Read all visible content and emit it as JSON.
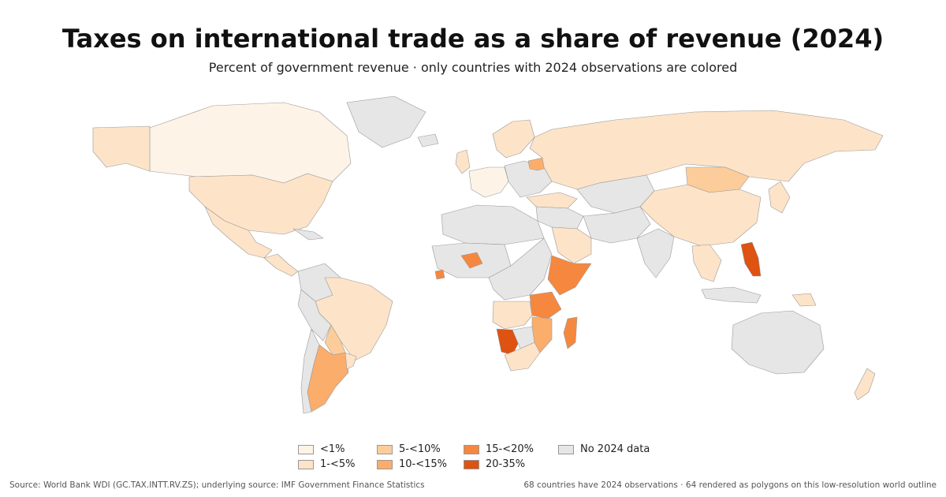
{
  "title": "Taxes on international trade as a share of revenue (2024)",
  "subtitle": "Percent of government revenue · only countries with 2024 observations are colored",
  "legend": {
    "items": [
      {
        "label": "<1%",
        "color": "#fef3e7"
      },
      {
        "label": "1-<5%",
        "color": "#fde3c8"
      },
      {
        "label": "5-<10%",
        "color": "#fccd9a"
      },
      {
        "label": "10-<15%",
        "color": "#fbad6b"
      },
      {
        "label": "15-<20%",
        "color": "#f5883e"
      },
      {
        "label": "20-35%",
        "color": "#de5212"
      },
      {
        "label": "No 2024 data",
        "color": "#e6e6e6"
      }
    ]
  },
  "footer": {
    "source": "Source: World Bank WDI (GC.TAX.INTT.RV.ZS); underlying source: IMF Government Finance Statistics",
    "note": "68 countries have 2024 observations · 64 rendered as polygons on this low-resolution world outline"
  },
  "map": {
    "regions": [
      {
        "name": "canada",
        "cls": "<1%"
      },
      {
        "name": "alaska",
        "cls": "1-<5%"
      },
      {
        "name": "greenland",
        "cls": "No 2024 data"
      },
      {
        "name": "usa",
        "cls": "1-<5%"
      },
      {
        "name": "mexico",
        "cls": "1-<5%"
      },
      {
        "name": "central-america",
        "cls": "1-<5%"
      },
      {
        "name": "caribbean",
        "cls": "No 2024 data"
      },
      {
        "name": "colombia-venezuela",
        "cls": "No 2024 data"
      },
      {
        "name": "brazil",
        "cls": "1-<5%"
      },
      {
        "name": "peru-bolivia",
        "cls": "No 2024 data"
      },
      {
        "name": "paraguay",
        "cls": "5-<10%"
      },
      {
        "name": "argentina",
        "cls": "10-<15%"
      },
      {
        "name": "chile",
        "cls": "No 2024 data"
      },
      {
        "name": "uruguay",
        "cls": "1-<5%"
      },
      {
        "name": "iceland",
        "cls": "No 2024 data"
      },
      {
        "name": "uk-ireland",
        "cls": "1-<5%"
      },
      {
        "name": "scandinavia",
        "cls": "1-<5%"
      },
      {
        "name": "western-europe",
        "cls": "<1%"
      },
      {
        "name": "eastern-europe",
        "cls": "No 2024 data"
      },
      {
        "name": "belarus",
        "cls": "10-<15%"
      },
      {
        "name": "turkey",
        "cls": "1-<5%"
      },
      {
        "name": "russia",
        "cls": "1-<5%"
      },
      {
        "name": "kazakhstan-central-asia",
        "cls": "No 2024 data"
      },
      {
        "name": "mongolia",
        "cls": "5-<10%"
      },
      {
        "name": "china",
        "cls": "1-<5%"
      },
      {
        "name": "korea-japan",
        "cls": "1-<5%"
      },
      {
        "name": "middle-east",
        "cls": "No 2024 data"
      },
      {
        "name": "saudi-arabia",
        "cls": "1-<5%"
      },
      {
        "name": "iran-afghanistan-pakistan",
        "cls": "No 2024 data"
      },
      {
        "name": "india",
        "cls": "No 2024 data"
      },
      {
        "name": "southeast-asia",
        "cls": "1-<5%"
      },
      {
        "name": "philippines",
        "cls": "20-35%"
      },
      {
        "name": "indonesia",
        "cls": "No 2024 data"
      },
      {
        "name": "papua-new-guinea",
        "cls": "1-<5%"
      },
      {
        "name": "australia",
        "cls": "No 2024 data"
      },
      {
        "name": "new-zealand",
        "cls": "1-<5%"
      },
      {
        "name": "north-africa",
        "cls": "No 2024 data"
      },
      {
        "name": "sahel-west-africa",
        "cls": "No 2024 data"
      },
      {
        "name": "burkina-faso",
        "cls": "15-<20%"
      },
      {
        "name": "sierra-leone",
        "cls": "15-<20%"
      },
      {
        "name": "central-africa",
        "cls": "No 2024 data"
      },
      {
        "name": "ethiopia-somalia",
        "cls": "15-<20%"
      },
      {
        "name": "tanzania",
        "cls": "15-<20%"
      },
      {
        "name": "angola-zambia",
        "cls": "1-<5%"
      },
      {
        "name": "mozambique-malawi",
        "cls": "10-<15%"
      },
      {
        "name": "namibia",
        "cls": "20-35%"
      },
      {
        "name": "botswana-zimbabwe",
        "cls": "No 2024 data"
      },
      {
        "name": "south-africa",
        "cls": "1-<5%"
      },
      {
        "name": "madagascar",
        "cls": "15-<20%"
      }
    ]
  }
}
